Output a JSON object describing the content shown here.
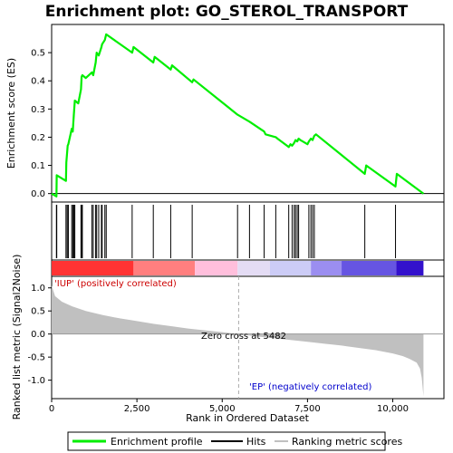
{
  "chart_data": {
    "title": "Enrichment plot: GO_STEROL_TRANSPORT",
    "xlabel": "Rank in Ordered Dataset",
    "xlim": [
      0,
      11500
    ],
    "x_ticks": [
      0,
      2500,
      5000,
      7500,
      10000
    ],
    "x_tick_labels": [
      "0",
      "2,500",
      "5,000",
      "7,500",
      "10,000"
    ],
    "panels": [
      {
        "type": "line",
        "name": "enrichment",
        "ylabel": "Enrichment score (ES)",
        "ylim": [
          -0.03,
          0.6
        ],
        "y_ticks": [
          0.0,
          0.1,
          0.2,
          0.3,
          0.4,
          0.5
        ],
        "y_tick_labels": [
          "0.0",
          "0.1",
          "0.2",
          "0.3",
          "0.4",
          "0.5"
        ],
        "series": [
          {
            "name": "Enrichment profile",
            "color": "#00ee00",
            "x": [
              0,
              140,
              150,
              420,
              430,
              470,
              490,
              590,
              620,
              650,
              680,
              780,
              860,
              880,
              900,
              1000,
              1180,
              1220,
              1290,
              1320,
              1380,
              1460,
              1480,
              1560,
              1600,
              2360,
              2400,
              2980,
              3020,
              3490,
              3530,
              4120,
              4160,
              5450,
              5800,
              6230,
              6270,
              6570,
              6620,
              6950,
              7000,
              7050,
              7110,
              7150,
              7200,
              7240,
              7290,
              7500,
              7540,
              7600,
              7650,
              7700,
              7750,
              9180,
              9220,
              10080,
              10120,
              10900
            ],
            "y": [
              0.0,
              -0.01,
              0.065,
              0.045,
              0.11,
              0.17,
              0.175,
              0.23,
              0.22,
              0.28,
              0.33,
              0.32,
              0.37,
              0.415,
              0.42,
              0.41,
              0.43,
              0.42,
              0.465,
              0.5,
              0.49,
              0.52,
              0.53,
              0.545,
              0.565,
              0.5,
              0.52,
              0.465,
              0.485,
              0.44,
              0.455,
              0.395,
              0.405,
              0.28,
              0.255,
              0.22,
              0.21,
              0.2,
              0.195,
              0.165,
              0.175,
              0.17,
              0.18,
              0.19,
              0.185,
              0.195,
              0.19,
              0.175,
              0.185,
              0.195,
              0.19,
              0.205,
              0.21,
              0.07,
              0.1,
              0.025,
              0.07,
              0.0
            ]
          }
        ]
      },
      {
        "type": "hits",
        "name": "Hits",
        "color": "#000000",
        "positions": [
          140,
          150,
          420,
          430,
          470,
          490,
          590,
          620,
          650,
          680,
          860,
          880,
          900,
          1180,
          1220,
          1290,
          1320,
          1380,
          1460,
          1480,
          1560,
          1600,
          2360,
          2980,
          3490,
          4120,
          5450,
          5800,
          6230,
          6570,
          6950,
          7050,
          7110,
          7150,
          7200,
          7240,
          7540,
          7600,
          7650,
          7700,
          9180,
          10080
        ]
      },
      {
        "type": "heatmap",
        "name": "rank color bar",
        "segments": [
          {
            "from": 0,
            "to": 2400,
            "color": "#ff3333"
          },
          {
            "from": 2400,
            "to": 4200,
            "color": "#ff7f7f"
          },
          {
            "from": 4200,
            "to": 5450,
            "color": "#ffbfdc"
          },
          {
            "from": 5450,
            "to": 6400,
            "color": "#e4dcf4"
          },
          {
            "from": 6400,
            "to": 7600,
            "color": "#ccccf6"
          },
          {
            "from": 7600,
            "to": 8500,
            "color": "#9b8ef0"
          },
          {
            "from": 8500,
            "to": 10100,
            "color": "#6655e2"
          },
          {
            "from": 10100,
            "to": 10900,
            "color": "#3311cc"
          }
        ]
      },
      {
        "type": "area",
        "name": "Ranking metric scores",
        "ylabel": "Ranked list metric (Signal2Noise)",
        "ylim": [
          -1.4,
          1.25
        ],
        "y_ticks": [
          1.0,
          0.5,
          0.0,
          -0.5,
          -1.0
        ],
        "y_tick_labels": [
          "1.0",
          "0.5",
          "0.0",
          "-0.5",
          "-1.0"
        ],
        "color": "#c0c0c0",
        "x": [
          0,
          100,
          300,
          600,
          1000,
          1500,
          2000,
          2500,
          3000,
          3500,
          4000,
          4500,
          5000,
          5482,
          6000,
          6500,
          7000,
          7500,
          8000,
          8500,
          9000,
          9500,
          10000,
          10300,
          10500,
          10700,
          10800,
          10850,
          10900
        ],
        "y": [
          1.05,
          0.82,
          0.7,
          0.6,
          0.5,
          0.41,
          0.34,
          0.28,
          0.22,
          0.17,
          0.12,
          0.08,
          0.04,
          0.0,
          -0.05,
          -0.09,
          -0.13,
          -0.17,
          -0.21,
          -0.25,
          -0.3,
          -0.35,
          -0.42,
          -0.48,
          -0.54,
          -0.62,
          -0.75,
          -0.95,
          -1.35
        ]
      }
    ],
    "annotations": {
      "pos_label": "'IUP' (positively correlated)",
      "neg_label": "'EP' (negatively correlated)",
      "zero_cross_label": "Zero cross at 5482",
      "zero_cross_x": 5482
    },
    "legend": {
      "placement": "bottom",
      "items": [
        {
          "label": "Enrichment profile",
          "color": "#00ee00"
        },
        {
          "label": "Hits",
          "color": "#000000"
        },
        {
          "label": "Ranking metric scores",
          "color": "#c0c0c0"
        }
      ]
    }
  }
}
